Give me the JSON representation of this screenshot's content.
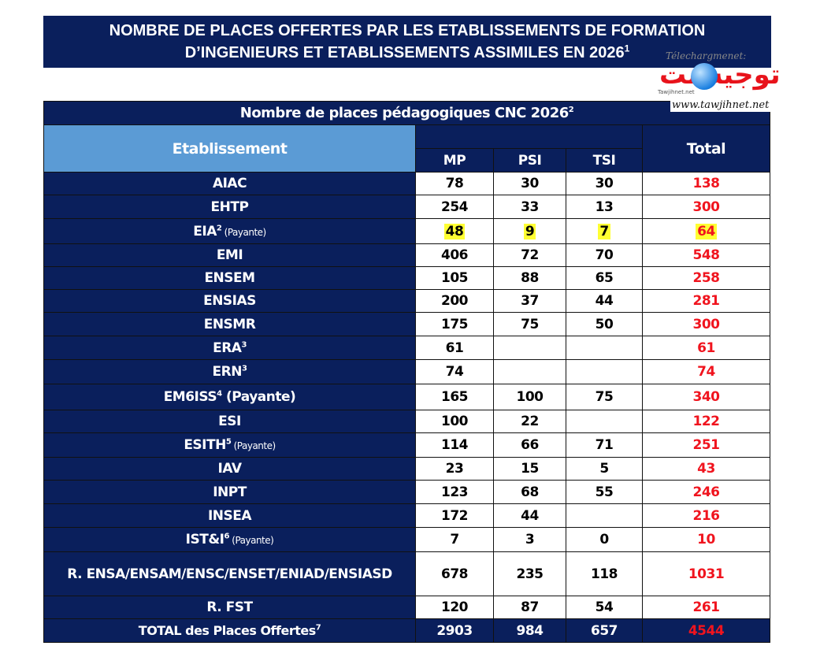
{
  "title": {
    "line1": "NOMBRE DE PLACES OFFERTES PAR LES ETABLISSEMENTS DE FORMATION",
    "line2": "D’INGENIEURS ET ETABLISSEMENTS ASSIMILES EN 2026",
    "sup": "1"
  },
  "watermark": {
    "download": "Télechargmenet:",
    "arabic": "توجيه نت",
    "small": "Tawjihnet.net",
    "url": "www.tawjihnet.net"
  },
  "table": {
    "caption": "Nombre de places pédagogiques CNC 2026",
    "caption_sup": "2",
    "col_etab": "Etablissement",
    "col_total": "Total",
    "cols": [
      "MP",
      "PSI",
      "TSI"
    ],
    "colors": {
      "header": "#0a1f5c",
      "subheader": "#5b9bd5",
      "total": "#f0141e",
      "highlight": "#ffff33"
    },
    "rows": [
      {
        "name": "AIAC",
        "sup": "",
        "note": "",
        "mp": "78",
        "psi": "30",
        "tsi": "30",
        "total": "138"
      },
      {
        "name": "EHTP",
        "sup": "",
        "note": "",
        "mp": "254",
        "psi": "33",
        "tsi": "13",
        "total": "300"
      },
      {
        "name": "EIA",
        "sup": "2",
        "note": "(Payante)",
        "note_small": true,
        "mp": "48",
        "psi": "9",
        "tsi": "7",
        "total": "64",
        "highlight": true
      },
      {
        "name": "EMI",
        "sup": "",
        "note": "",
        "mp": "406",
        "psi": "72",
        "tsi": "70",
        "total": "548"
      },
      {
        "name": "ENSEM",
        "sup": "",
        "note": "",
        "mp": "105",
        "psi": "88",
        "tsi": "65",
        "total": "258"
      },
      {
        "name": "ENSIAS",
        "sup": "",
        "note": "",
        "mp": "200",
        "psi": "37",
        "tsi": "44",
        "total": "281"
      },
      {
        "name": "ENSMR",
        "sup": "",
        "note": "",
        "mp": "175",
        "psi": "75",
        "tsi": "50",
        "total": "300"
      },
      {
        "name": "ERA",
        "sup": "3",
        "note": "",
        "mp": "61",
        "psi": "",
        "tsi": "",
        "total": "61"
      },
      {
        "name": "ERN",
        "sup": "3",
        "note": "",
        "mp": "74",
        "psi": "",
        "tsi": "",
        "total": "74"
      },
      {
        "name": "EM6ISS",
        "sup": "4",
        "note": "(Payante)",
        "note_small": false,
        "mp": "165",
        "psi": "100",
        "tsi": "75",
        "total": "340"
      },
      {
        "name": "ESI",
        "sup": "",
        "note": "",
        "mp": "100",
        "psi": "22",
        "tsi": "",
        "total": "122"
      },
      {
        "name": "ESITH",
        "sup": "5",
        "note": "(Payante)",
        "note_small": true,
        "mp": "114",
        "psi": "66",
        "tsi": "71",
        "total": "251"
      },
      {
        "name": "IAV",
        "sup": "",
        "note": "",
        "mp": "23",
        "psi": "15",
        "tsi": "5",
        "total": "43"
      },
      {
        "name": "INPT",
        "sup": "",
        "note": "",
        "mp": "123",
        "psi": "68",
        "tsi": "55",
        "total": "246"
      },
      {
        "name": "INSEA",
        "sup": "",
        "note": "",
        "mp": "172",
        "psi": "44",
        "tsi": "",
        "total": "216"
      },
      {
        "name": "IST&I",
        "sup": "6",
        "note": "(Payante)",
        "note_small": true,
        "mp": "7",
        "psi": "3",
        "tsi": "0",
        "total": "10"
      },
      {
        "name": "R. ENSA/ENSAM/ENSC/ENSET/ENIAD/ENSIASD",
        "sup": "",
        "note": "",
        "mp": "678",
        "psi": "235",
        "tsi": "118",
        "total": "1031"
      },
      {
        "name": "R. FST",
        "sup": "",
        "note": "",
        "mp": "120",
        "psi": "87",
        "tsi": "54",
        "total": "261"
      }
    ],
    "total_row": {
      "name": "TOTAL des Places Offertes",
      "sup": "7",
      "mp": "2903",
      "psi": "984",
      "tsi": "657",
      "total": "4544"
    }
  }
}
